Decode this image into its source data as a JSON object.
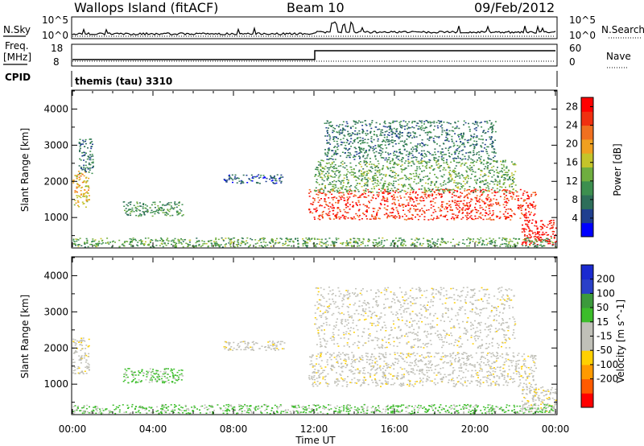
{
  "header": {
    "site": "Wallops Island (fitACF)",
    "beam": "Beam 10",
    "date": "09/Feb/2012"
  },
  "labels": {
    "nsky": "N.Sky",
    "nsearch": "N.Search",
    "freq_top": "Freq.",
    "freq_unit": "[MHz]",
    "cpid": "CPID",
    "nave": "Nave",
    "cpid_value": "themis (tau) 3310",
    "noise_ticks": [
      "10^5",
      "10^0"
    ],
    "freq_ticks": [
      "18",
      "8"
    ],
    "nave_ticks": [
      "60",
      "0"
    ]
  },
  "colors": {
    "power": [
      "#0000ff",
      "#1f3f8f",
      "#2e6e5a",
      "#3d8f4f",
      "#6fae3f",
      "#c4c42a",
      "#f0a020",
      "#f07020",
      "#f03010",
      "#ff0000"
    ],
    "velocity": [
      "#ff0000",
      "#ff5a00",
      "#ff9a00",
      "#ffd000",
      "#c0c0b8",
      "#c0c0b8",
      "#3cbd2a",
      "#3c9a3c",
      "#2a40c8",
      "#1a2ad0"
    ]
  },
  "chart_data": [
    {
      "type": "heatmap",
      "name": "power",
      "xlabel": "",
      "ylabel": "Slant Range [km]",
      "xlim": [
        0,
        24
      ],
      "ylim": [
        180,
        4500
      ],
      "yticks": [
        "1000",
        "2000",
        "3000",
        "4000"
      ],
      "colorbar": {
        "label": "Power [dB]",
        "ticks": [
          "4",
          "8",
          "12",
          "16",
          "20",
          "24",
          "28"
        ],
        "range": [
          0,
          30
        ]
      },
      "regions": [
        {
          "t": [
            0.0,
            0.8
          ],
          "r": [
            1300,
            2300
          ],
          "power": 18
        },
        {
          "t": [
            0.3,
            1.0
          ],
          "r": [
            2200,
            3200
          ],
          "power": 8
        },
        {
          "t": [
            2.5,
            5.5
          ],
          "r": [
            1050,
            1450
          ],
          "power": 10
        },
        {
          "t": [
            7.5,
            10.5
          ],
          "r": [
            1950,
            2200
          ],
          "power": 6
        },
        {
          "t": [
            11.7,
            23.0
          ],
          "r": [
            950,
            1800
          ],
          "power": 26
        },
        {
          "t": [
            12.0,
            22.0
          ],
          "r": [
            1700,
            2600
          ],
          "power": 12
        },
        {
          "t": [
            12.5,
            21.0
          ],
          "r": [
            2600,
            3700
          ],
          "power": 8
        },
        {
          "t": [
            22.3,
            24.0
          ],
          "r": [
            250,
            950
          ],
          "power": 28
        },
        {
          "t": [
            0.0,
            24.0
          ],
          "r": [
            200,
            450
          ],
          "power": 12
        }
      ]
    },
    {
      "type": "heatmap",
      "name": "velocity",
      "xlabel": "Time UT",
      "ylabel": "Slant Range [km]",
      "xlim": [
        0,
        24
      ],
      "ylim": [
        180,
        4500
      ],
      "xticks": [
        "00:00",
        "04:00",
        "08:00",
        "12:00",
        "16:00",
        "20:00",
        "00:00"
      ],
      "yticks": [
        "1000",
        "2000",
        "3000",
        "4000"
      ],
      "colorbar": {
        "label": "Velocity [m s^-1]",
        "ticks": [
          "200",
          "100",
          "50",
          "15",
          "-15",
          "-50",
          "-100",
          "-200"
        ]
      },
      "regions": [
        {
          "t": [
            0.0,
            0.8
          ],
          "r": [
            1300,
            2300
          ],
          "velocity": 0
        },
        {
          "t": [
            2.5,
            5.5
          ],
          "r": [
            1050,
            1450
          ],
          "velocity": 40
        },
        {
          "t": [
            7.5,
            10.5
          ],
          "r": [
            1950,
            2200
          ],
          "velocity": 0
        },
        {
          "t": [
            11.7,
            23.0
          ],
          "r": [
            950,
            1900
          ],
          "velocity": 0
        },
        {
          "t": [
            12.0,
            22.0
          ],
          "r": [
            2000,
            3700
          ],
          "velocity": 0
        },
        {
          "t": [
            22.3,
            24.0
          ],
          "r": [
            250,
            950
          ],
          "velocity": 0
        },
        {
          "t": [
            0.0,
            24.0
          ],
          "r": [
            200,
            450
          ],
          "velocity": 40
        }
      ]
    }
  ]
}
